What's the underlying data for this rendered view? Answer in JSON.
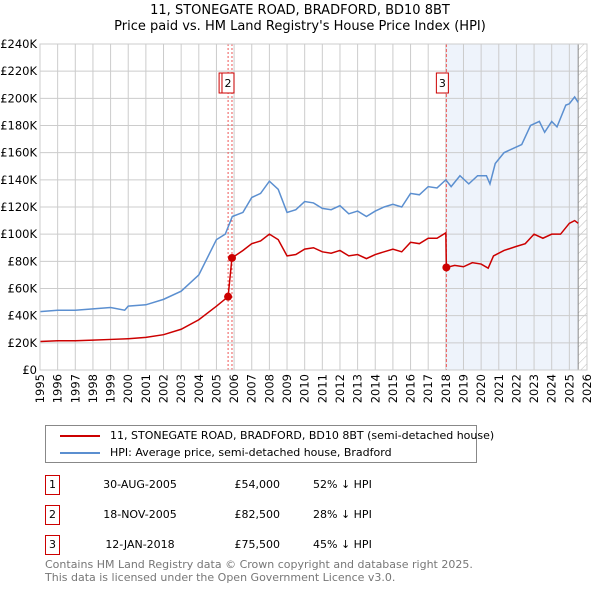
{
  "title": "11, STONEGATE ROAD, BRADFORD, BD10 8BT",
  "subtitle": "Price paid vs. HM Land Registry's House Price Index (HPI)",
  "legend": {
    "red": "11, STONEGATE ROAD, BRADFORD, BD10 8BT (semi-detached house)",
    "blue": "HPI: Average price, semi-detached house, Bradford"
  },
  "transactions": [
    {
      "n": "1",
      "date": "30-AUG-2005",
      "price": "£54,000",
      "pct": "52% ↓ HPI"
    },
    {
      "n": "2",
      "date": "18-NOV-2005",
      "price": "£82,500",
      "pct": "28% ↓ HPI"
    },
    {
      "n": "3",
      "date": "12-JAN-2018",
      "price": "£75,500",
      "pct": "45% ↓ HPI"
    }
  ],
  "footer": [
    "Contains HM Land Registry data © Crown copyright and database right 2025.",
    "This data is licensed under the Open Government Licence v3.0."
  ],
  "chart_data": {
    "type": "line",
    "xlim": [
      1995,
      2026
    ],
    "ylim": [
      0,
      240000
    ],
    "yticks": [
      0,
      20000,
      40000,
      60000,
      80000,
      100000,
      120000,
      140000,
      160000,
      180000,
      200000,
      220000,
      240000
    ],
    "ytick_labels": [
      "£0",
      "£20K",
      "£40K",
      "£60K",
      "£80K",
      "£100K",
      "£120K",
      "£140K",
      "£160K",
      "£180K",
      "£200K",
      "£220K",
      "£240K"
    ],
    "xticks": [
      "1995",
      "1996",
      "1997",
      "1998",
      "1999",
      "2000",
      "2001",
      "2002",
      "2003",
      "2004",
      "2005",
      "2006",
      "2007",
      "2008",
      "2009",
      "2010",
      "2011",
      "2012",
      "2013",
      "2014",
      "2015",
      "2016",
      "2017",
      "2018",
      "2019",
      "2020",
      "2021",
      "2022",
      "2023",
      "2024",
      "2025",
      "2026"
    ],
    "colors": {
      "red": "#cc0000",
      "blue": "#5b8fd0",
      "shade": "#eef3fb"
    },
    "shaded_from": 2018.03,
    "hatched_from": 2025.5,
    "sales": [
      {
        "label": "1",
        "x": 2005.66,
        "y": 54000
      },
      {
        "label": "2",
        "x": 2005.88,
        "y": 82500
      },
      {
        "label": "3",
        "x": 2018.03,
        "y": 75500
      }
    ],
    "series": [
      {
        "name": "HPI",
        "color": "#5b8fd0",
        "x": [
          1995,
          1996,
          1997,
          1998,
          1999,
          1999.8,
          2000,
          2001,
          2002,
          2003,
          2004,
          2005,
          2005.5,
          2005.9,
          2006.5,
          2007,
          2007.5,
          2008,
          2008.5,
          2009,
          2009.5,
          2010,
          2010.5,
          2011,
          2011.5,
          2012,
          2012.5,
          2013,
          2013.5,
          2014,
          2014.5,
          2015,
          2015.5,
          2016,
          2016.5,
          2017,
          2017.5,
          2018,
          2018.3,
          2018.8,
          2019.3,
          2019.8,
          2020.3,
          2020.5,
          2020.8,
          2021.3,
          2021.8,
          2022.3,
          2022.8,
          2023.3,
          2023.6,
          2024,
          2024.3,
          2024.8,
          2025,
          2025.3,
          2025.5
        ],
        "y": [
          43000,
          44000,
          44000,
          45000,
          46000,
          44000,
          47000,
          48000,
          52000,
          58000,
          70000,
          96000,
          100000,
          113000,
          116000,
          127000,
          130000,
          139000,
          133000,
          116000,
          118000,
          124000,
          123000,
          119000,
          118000,
          121000,
          115000,
          117000,
          113000,
          117000,
          120000,
          122000,
          120000,
          130000,
          129000,
          135000,
          134000,
          140000,
          135000,
          143000,
          137000,
          143000,
          143000,
          137000,
          152000,
          160000,
          163000,
          166000,
          180000,
          183000,
          175000,
          183000,
          179000,
          195000,
          196000,
          201000,
          197000
        ]
      },
      {
        "name": "Property",
        "color": "#cc0000",
        "x": [
          1995,
          1996,
          1997,
          1998,
          1999,
          2000,
          2001,
          2002,
          2003,
          2004,
          2005,
          2005.66,
          2005.88,
          2006.5,
          2007,
          2007.5,
          2008,
          2008.5,
          2009,
          2009.5,
          2010,
          2010.5,
          2011,
          2011.5,
          2012,
          2012.5,
          2013,
          2013.5,
          2014,
          2014.5,
          2015,
          2015.5,
          2016,
          2016.5,
          2017,
          2017.5,
          2018,
          2018.03,
          2018.5,
          2019,
          2019.5,
          2020,
          2020.4,
          2020.7,
          2021.3,
          2022,
          2022.5,
          2023,
          2023.5,
          2024,
          2024.5,
          2025,
          2025.3,
          2025.5
        ],
        "y": [
          21000,
          21500,
          21500,
          22000,
          22500,
          23000,
          24000,
          26000,
          30000,
          37000,
          47000,
          54000,
          82500,
          88000,
          93000,
          95000,
          100000,
          96000,
          84000,
          85000,
          89000,
          90000,
          87000,
          86000,
          88000,
          84000,
          85000,
          82000,
          85000,
          87000,
          89000,
          87000,
          94000,
          93000,
          97000,
          97000,
          101000,
          75500,
          77000,
          76000,
          79000,
          78000,
          75000,
          84000,
          88000,
          91000,
          93000,
          100000,
          97000,
          100000,
          100000,
          108000,
          110000,
          108000
        ]
      }
    ]
  }
}
